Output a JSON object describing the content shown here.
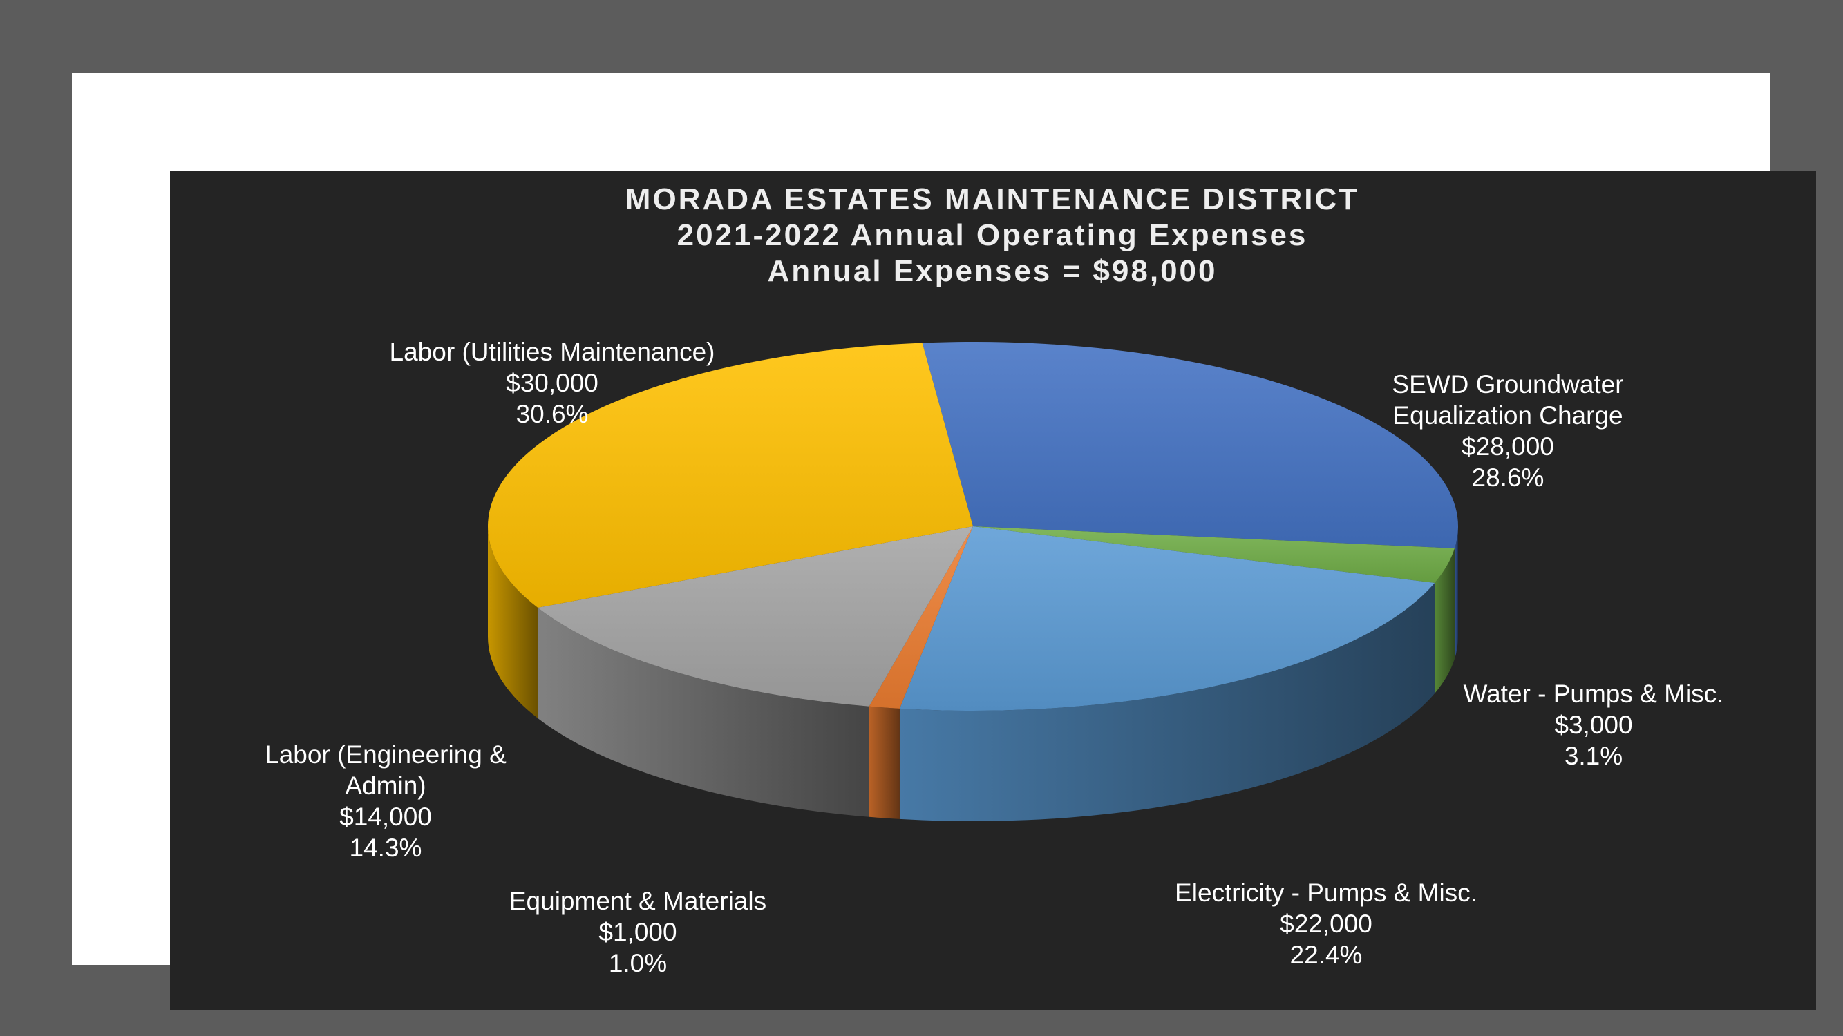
{
  "chart_data": {
    "type": "pie",
    "title": [
      "MORADA ESTATES MAINTENANCE DISTRICT",
      "2021-2022 Annual Operating Expenses",
      "Annual Expenses = $98,000"
    ],
    "slices": [
      {
        "name": "SEWD Groundwater Equalization Charge",
        "label_lines": [
          "SEWD Groundwater",
          "Equalization Charge"
        ],
        "value": 28000,
        "value_label": "$28,000",
        "percent": 28.6,
        "percent_label": "28.6%",
        "color": "#4472c4"
      },
      {
        "name": "Water - Pumps & Misc.",
        "label_lines": [
          "Water - Pumps & Misc."
        ],
        "value": 3000,
        "value_label": "$3,000",
        "percent": 3.1,
        "percent_label": "3.1%",
        "color": "#70ad47"
      },
      {
        "name": "Electricity - Pumps & Misc.",
        "label_lines": [
          "Electricity - Pumps & Misc."
        ],
        "value": 22000,
        "value_label": "$22,000",
        "percent": 22.4,
        "percent_label": "22.4%",
        "color": "#5b9bd5"
      },
      {
        "name": "Equipment & Materials",
        "label_lines": [
          "Equipment & Materials"
        ],
        "value": 1000,
        "value_label": "$1,000",
        "percent": 1.0,
        "percent_label": "1.0%",
        "color": "#ed7d31"
      },
      {
        "name": "Labor (Engineering & Admin)",
        "label_lines": [
          "Labor (Engineering &",
          "Admin)"
        ],
        "value": 14000,
        "value_label": "$14,000",
        "percent": 14.3,
        "percent_label": "14.3%",
        "color": "#a5a5a5"
      },
      {
        "name": "Labor (Utilities Maintenance)",
        "label_lines": [
          "Labor (Utilities Maintenance)"
        ],
        "value": 30000,
        "value_label": "$30,000",
        "percent": 30.6,
        "percent_label": "30.6%",
        "color": "#ffc000"
      }
    ],
    "total": 98000,
    "style": "3d-pie"
  }
}
